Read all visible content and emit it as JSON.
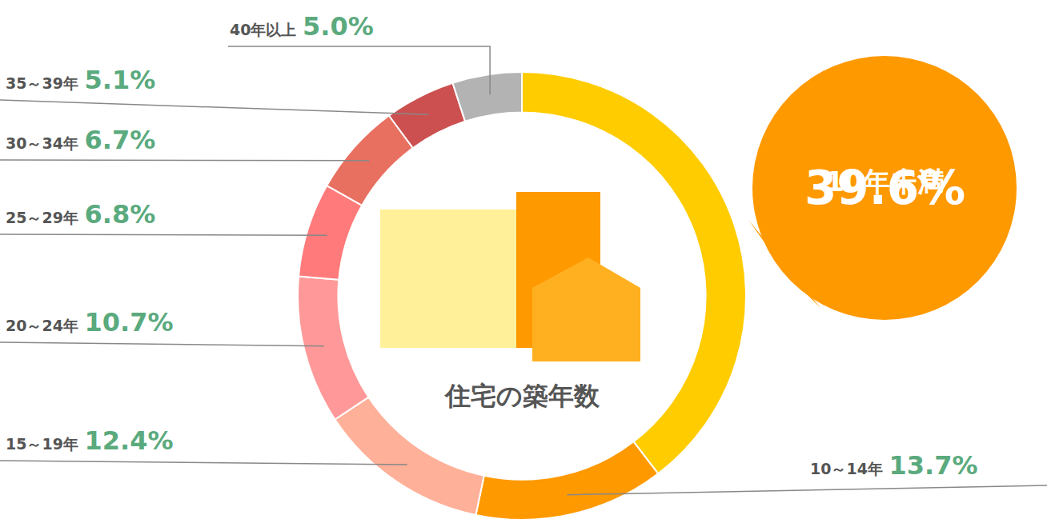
{
  "chart_data": {
    "type": "pie",
    "title": "住宅の築年数",
    "categories": [
      "10年未満",
      "10～14年",
      "15～19年",
      "20～24年",
      "25～29年",
      "30～34年",
      "35～39年",
      "40年以上"
    ],
    "values": [
      39.6,
      13.7,
      12.4,
      10.7,
      6.8,
      6.7,
      5.1,
      5.0
    ],
    "value_labels": [
      "39.6%",
      "13.7%",
      "12.4%",
      "10.7%",
      "6.8%",
      "6.7%",
      "5.1%",
      "5.0%"
    ],
    "colors": [
      "#FFCC00",
      "#FF9900",
      "#FFB099",
      "#FF9999",
      "#FF7A7A",
      "#E87060",
      "#CC5050",
      "#B3B3B3"
    ],
    "data_labels": true
  }
}
